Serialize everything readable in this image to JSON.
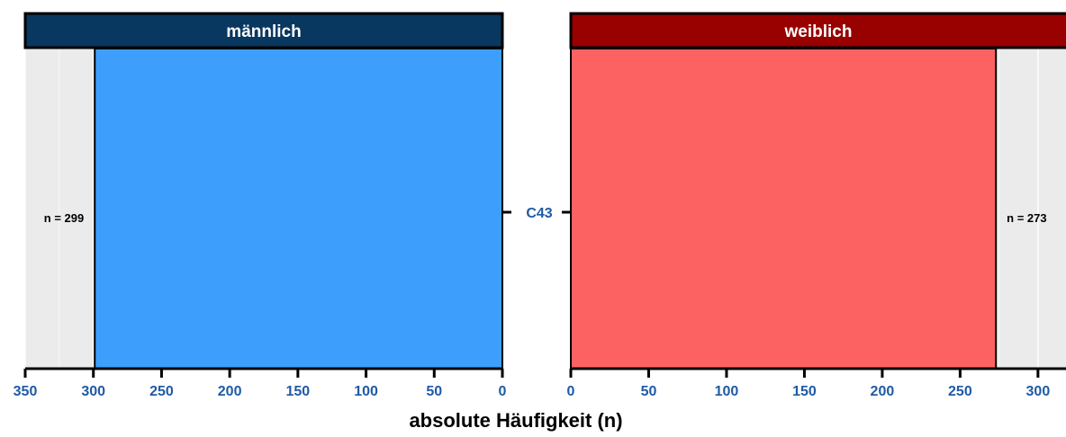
{
  "chart_data": {
    "type": "bar",
    "orientation": "horizontal",
    "layout": "population-pyramid",
    "categories": [
      "C43"
    ],
    "xlabel": "absolute Häufigkeit (n)",
    "grid": true,
    "panels": [
      {
        "name": "männlich",
        "strip_color": "#08375f",
        "bar_color": "#3d9ffb",
        "values": [
          299
        ],
        "value_labels": [
          "n = 299"
        ],
        "xlim": [
          0,
          350
        ],
        "reversed": true,
        "ticks": [
          0,
          50,
          100,
          150,
          200,
          250,
          300,
          350
        ],
        "tick_labels": [
          "0",
          "50",
          "100",
          "150",
          "200",
          "250",
          "300",
          "350"
        ]
      },
      {
        "name": "weiblich",
        "strip_color": "#990000",
        "bar_color": "#fd6262",
        "values": [
          273
        ],
        "value_labels": [
          "n = 273"
        ],
        "xlim": [
          0,
          318
        ],
        "reversed": false,
        "ticks": [
          0,
          50,
          100,
          150,
          200,
          250,
          300
        ],
        "tick_labels": [
          "0",
          "50",
          "100",
          "150",
          "200",
          "250",
          "300"
        ]
      }
    ]
  }
}
